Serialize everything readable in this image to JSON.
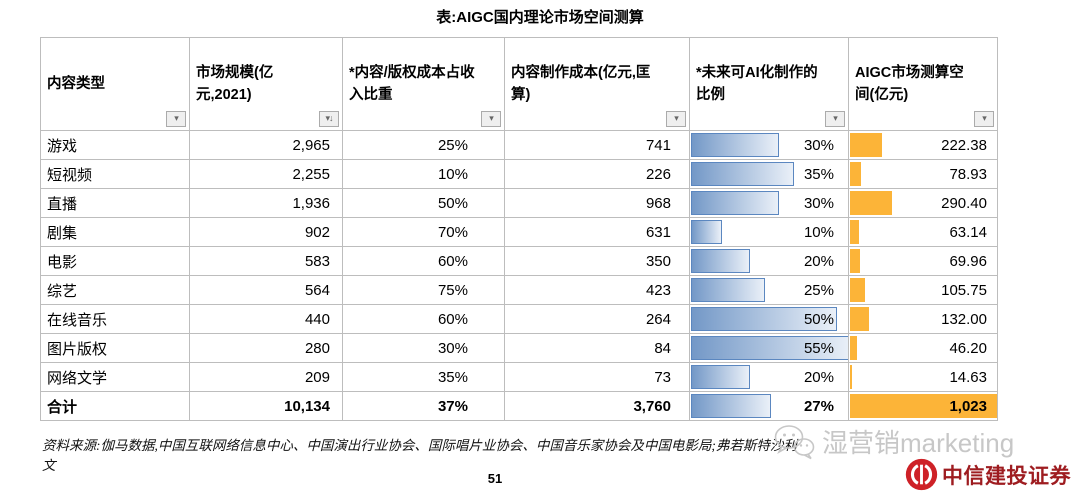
{
  "title": "表:AIGC国内理论市场空间测算",
  "table": {
    "columns": [
      {
        "label": "内容类型",
        "filter_glyph": "▾"
      },
      {
        "label": "市场规模(亿元,2021)",
        "filter_glyph": "▾↓"
      },
      {
        "label": "*内容/版权成本占收入比重",
        "filter_glyph": "▾"
      },
      {
        "label": "内容制作成本(亿元,匡算)",
        "filter_glyph": "▾"
      },
      {
        "label": "*未来可AI化制作的比例",
        "filter_glyph": "▾"
      },
      {
        "label": "AIGC市场测算空间(亿元)",
        "filter_glyph": "▾"
      }
    ],
    "rows": [
      {
        "type": "游戏",
        "market_size": "2,965",
        "cost_ratio": "25%",
        "production_cost": "741",
        "ai_ratio": "30%",
        "space": "222.38"
      },
      {
        "type": "短视频",
        "market_size": "2,255",
        "cost_ratio": "10%",
        "production_cost": "226",
        "ai_ratio": "35%",
        "space": "78.93"
      },
      {
        "type": "直播",
        "market_size": "1,936",
        "cost_ratio": "50%",
        "production_cost": "968",
        "ai_ratio": "30%",
        "space": "290.40"
      },
      {
        "type": "剧集",
        "market_size": "902",
        "cost_ratio": "70%",
        "production_cost": "631",
        "ai_ratio": "10%",
        "space": "63.14"
      },
      {
        "type": "电影",
        "market_size": "583",
        "cost_ratio": "60%",
        "production_cost": "350",
        "ai_ratio": "20%",
        "space": "69.96"
      },
      {
        "type": "综艺",
        "market_size": "564",
        "cost_ratio": "75%",
        "production_cost": "423",
        "ai_ratio": "25%",
        "space": "105.75"
      },
      {
        "type": "在线音乐",
        "market_size": "440",
        "cost_ratio": "60%",
        "production_cost": "264",
        "ai_ratio": "50%",
        "space": "132.00"
      },
      {
        "type": "图片版权",
        "market_size": "280",
        "cost_ratio": "30%",
        "production_cost": "84",
        "ai_ratio": "55%",
        "space": "46.20"
      },
      {
        "type": "网络文学",
        "market_size": "209",
        "cost_ratio": "35%",
        "production_cost": "73",
        "ai_ratio": "20%",
        "space": "14.63"
      }
    ],
    "total": {
      "type": "合计",
      "market_size": "10,134",
      "cost_ratio": "37%",
      "production_cost": "3,760",
      "ai_ratio": "27%",
      "space": "1,023"
    },
    "bar_scales": {
      "ai_ratio_max": 55,
      "space_max": 1023
    },
    "colors": {
      "bar_blue_start": "#7398c7",
      "bar_blue_end": "#eaf0f8",
      "bar_blue_border": "#5b87c0",
      "bar_orange": "#fcb438"
    }
  },
  "footer": {
    "source": "资料来源:伽马数据,中国互联网络信息中心、中国演出行业协会、国际唱片业协会、中国音乐家协会及中国电影局;弗若斯特沙利文",
    "page_number": "51",
    "watermark": "湿营销marketing",
    "brand": "中信建投证券",
    "brand_color": "#9e1c20",
    "watermark_color": "#c7c7c7"
  }
}
